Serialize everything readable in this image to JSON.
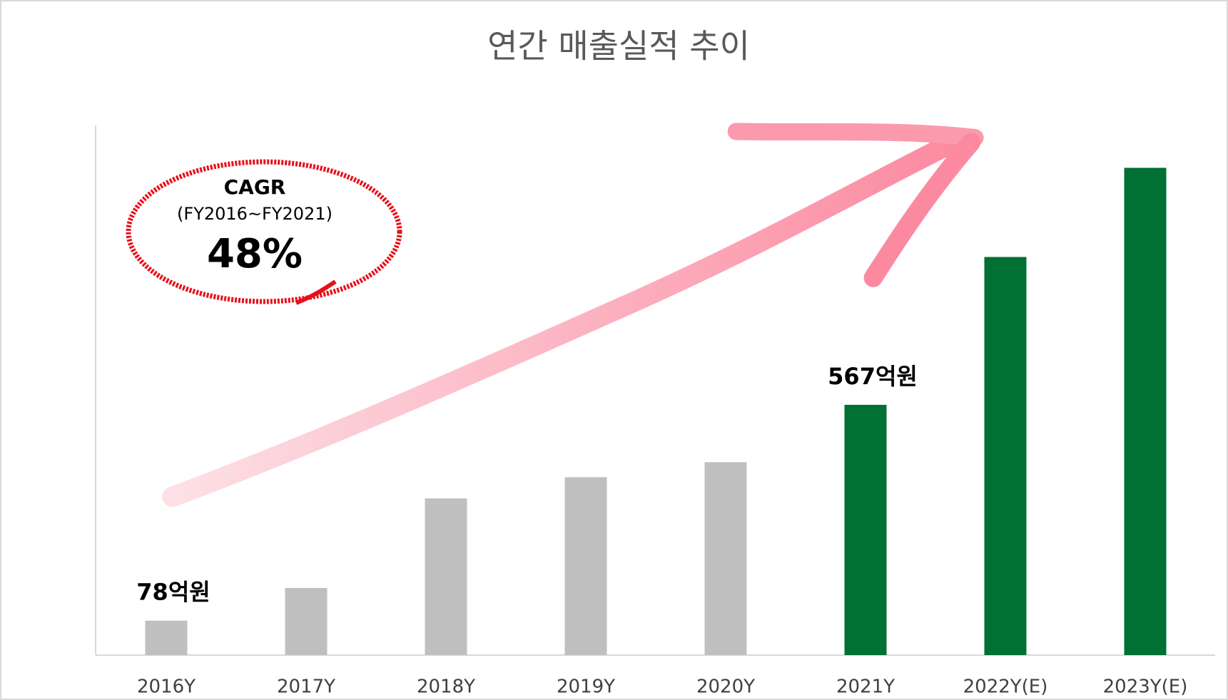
{
  "chart_data": {
    "type": "bar",
    "title": "연간 매출실적 추이",
    "categories": [
      "2016Y",
      "2017Y",
      "2018Y",
      "2019Y",
      "2020Y",
      "2021Y",
      "2022Y(E)",
      "2023Y(E)"
    ],
    "values": [
      78,
      152,
      355,
      403,
      437,
      567,
      902,
      1104
    ],
    "value_labels": [
      "78억원",
      null,
      null,
      null,
      null,
      "567억원",
      null,
      null
    ],
    "colors": [
      "#bfbfbf",
      "#bfbfbf",
      "#bfbfbf",
      "#bfbfbf",
      "#bfbfbf",
      "#007033",
      "#007033",
      "#007033"
    ],
    "ylim": [
      0,
      1200
    ],
    "annotations": [
      "CAGR",
      "(FY2016~FY2021)",
      "48%"
    ]
  }
}
